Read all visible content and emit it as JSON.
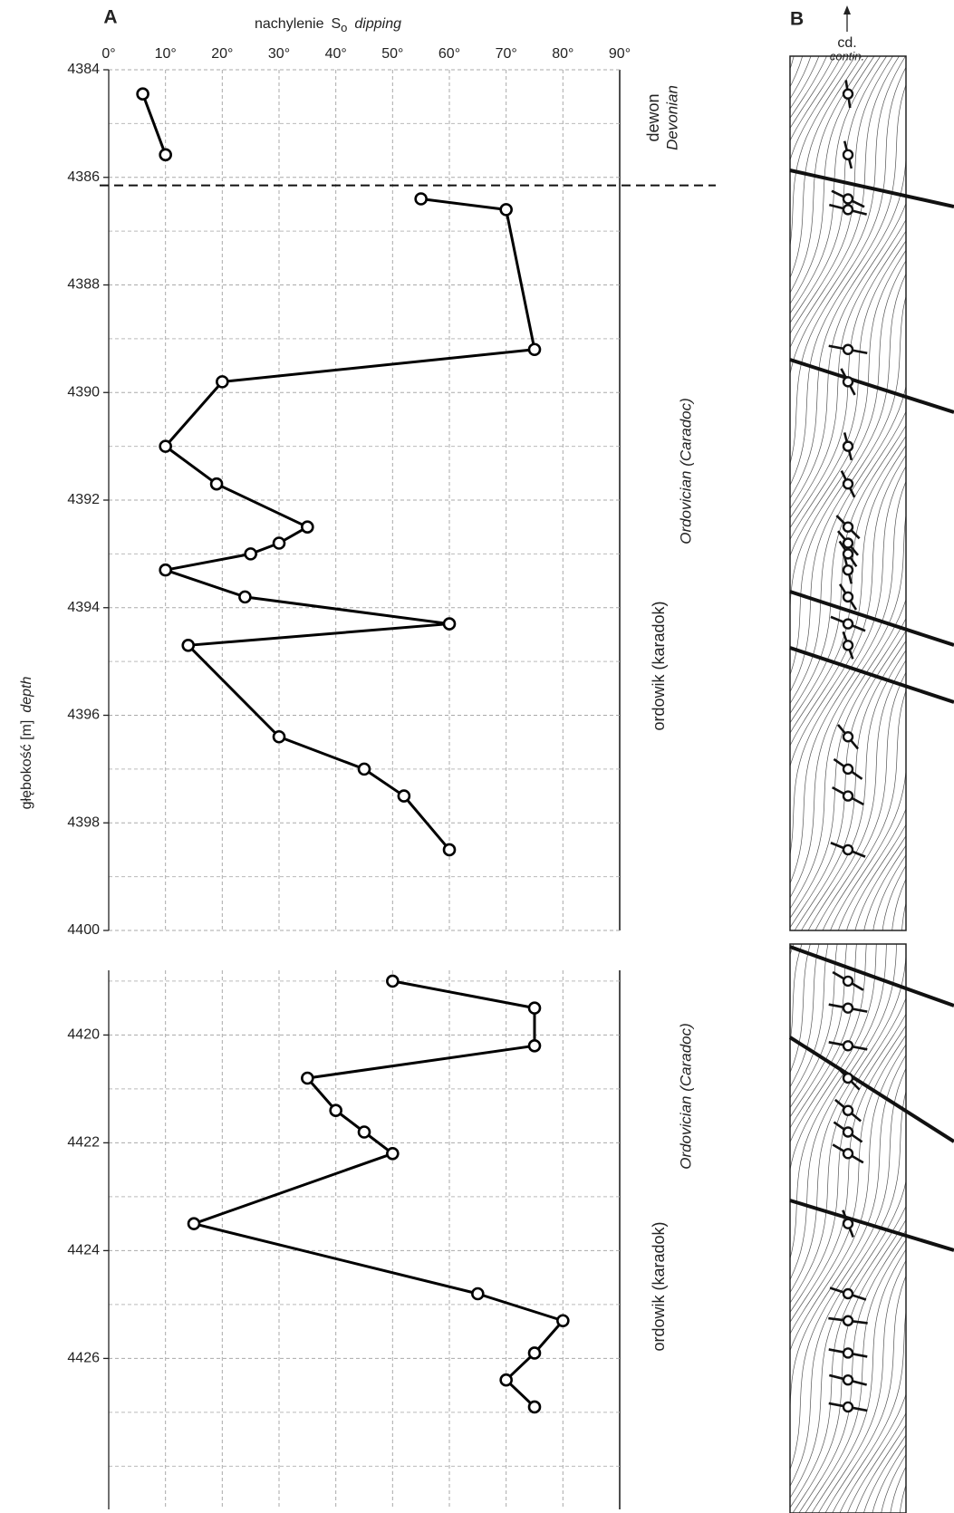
{
  "chart_data": [
    {
      "type": "line",
      "panel_label": "A",
      "xlabel": "nachylenie",
      "xlabel_symbol": "S",
      "xlabel_subscript": "o",
      "xlabel_en": "dipping",
      "ylabel": "głębokość [m]",
      "ylabel_en": "depth",
      "xlim": [
        0,
        90
      ],
      "xticks": [
        {
          "value": 0,
          "label": "0°"
        },
        {
          "value": 10,
          "label": "10°"
        },
        {
          "value": 20,
          "label": "20°"
        },
        {
          "value": 30,
          "label": "30°"
        },
        {
          "value": 40,
          "label": "40°"
        },
        {
          "value": 50,
          "label": "50°"
        },
        {
          "value": 60,
          "label": "60°"
        },
        {
          "value": 70,
          "label": "70°"
        },
        {
          "value": 80,
          "label": "80°"
        },
        {
          "value": 90,
          "label": "90°"
        }
      ],
      "ylim": [
        4384,
        4400
      ],
      "yticks": [
        4384,
        4386,
        4388,
        4390,
        4392,
        4394,
        4396,
        4398,
        4400
      ],
      "y_minor_grid": [
        4385,
        4387,
        4389,
        4391,
        4393,
        4395,
        4397,
        4399
      ],
      "grid": true,
      "boundary_depth": 4386.15,
      "strata": [
        {
          "pl": "dewon",
          "en": "Devonian"
        },
        {
          "pl": "ordowik (karadok)",
          "en": "Ordovician (Caradoc)"
        }
      ],
      "series": [
        {
          "color": "#000000",
          "x": [
            6,
            10,
            null,
            55,
            70,
            75,
            20,
            10,
            19,
            35,
            30,
            25,
            10,
            24,
            60,
            14,
            30,
            45,
            52,
            60
          ],
          "y": [
            4384.45,
            4385.58,
            null,
            4386.4,
            4386.6,
            4389.2,
            4389.8,
            4391.0,
            4391.7,
            4392.5,
            4392.8,
            4393.0,
            4393.3,
            4393.8,
            4394.3,
            4394.7,
            4396.4,
            4397.0,
            4397.5,
            4398.5
          ]
        }
      ]
    },
    {
      "type": "line",
      "xlim": [
        0,
        90
      ],
      "ylim": [
        4418.8,
        4428.8
      ],
      "yticks": [
        4420,
        4422,
        4424,
        4426
      ],
      "y_minor_grid": [
        4419,
        4421,
        4423,
        4425,
        4427,
        4428
      ],
      "grid": true,
      "strata": [
        {
          "pl": "ordowik (karadok)",
          "en": "Ordovician (Caradoc)"
        }
      ],
      "series": [
        {
          "color": "#000000",
          "x": [
            50,
            75,
            75,
            35,
            40,
            45,
            50,
            15,
            65,
            80,
            75,
            70,
            75
          ],
          "y": [
            4419.0,
            4419.5,
            4420.2,
            4420.8,
            4421.4,
            4421.8,
            4422.2,
            4423.5,
            4424.8,
            4425.3,
            4425.9,
            4426.4,
            4426.9
          ]
        }
      ]
    }
  ],
  "column": {
    "panel_label": "B",
    "contin_pl": "cd.",
    "contin_en": "contin."
  }
}
